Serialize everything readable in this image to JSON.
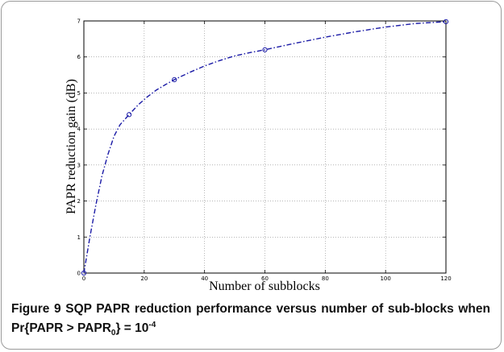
{
  "chart_data": {
    "type": "line",
    "xlabel": "Number of subblocks",
    "ylabel": "PAPR reduction gain (dB)",
    "xlim": [
      0,
      120
    ],
    "ylim": [
      0,
      7
    ],
    "x_ticks": [
      "0",
      "20",
      "40",
      "60",
      "80",
      "100",
      "120"
    ],
    "y_ticks": [
      "0",
      "1",
      "2",
      "3",
      "4",
      "5",
      "6",
      "7"
    ],
    "grid": true,
    "series": [
      {
        "markers_x": [
          0,
          15,
          30,
          60,
          120
        ],
        "markers_y": [
          0,
          4.4,
          5.37,
          6.2,
          6.98
        ],
        "curve_x": [
          0,
          2,
          4,
          6,
          8,
          10,
          12,
          15,
          18,
          21,
          24,
          27,
          30,
          35,
          40,
          45,
          50,
          55,
          60,
          70,
          80,
          90,
          100,
          110,
          120
        ],
        "curve_y": [
          0,
          1.0,
          1.9,
          2.7,
          3.3,
          3.8,
          4.12,
          4.4,
          4.67,
          4.89,
          5.08,
          5.23,
          5.37,
          5.57,
          5.75,
          5.9,
          6.03,
          6.12,
          6.2,
          6.38,
          6.55,
          6.7,
          6.83,
          6.93,
          6.98
        ],
        "color": "#1a1aa6",
        "line_style": "dash-dot",
        "marker": "circle"
      }
    ]
  },
  "caption": {
    "figure_label": "Figure 9",
    "text_main": "SQP PAPR reduction performance versus number of sub-blocks when Pr{PAPR > PAPR",
    "sub": "0",
    "text_mid": "} = 10",
    "sup": "-4"
  }
}
